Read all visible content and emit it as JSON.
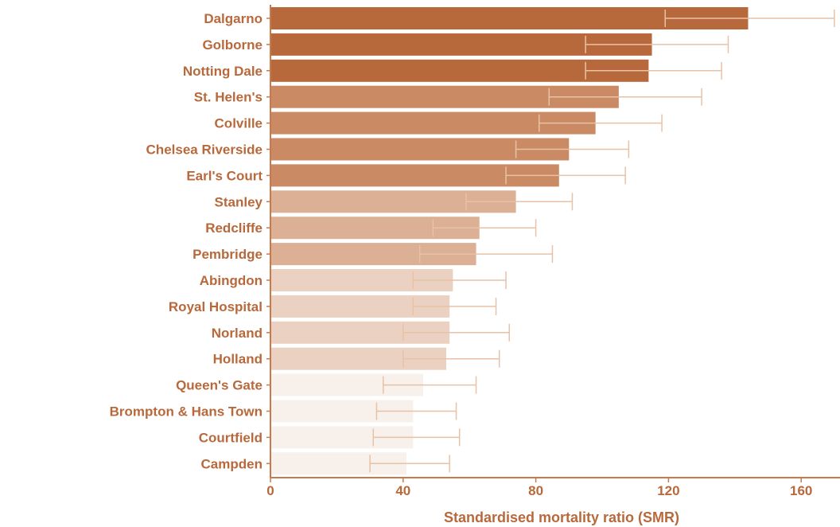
{
  "chart_data": {
    "type": "bar",
    "orientation": "horizontal",
    "xlabel": "Standardised mortality ratio (SMR)",
    "ylabel": "",
    "xlim": [
      0,
      170
    ],
    "xticks": [
      0,
      40,
      80,
      120,
      160
    ],
    "grid": false,
    "label_color": "#b8693c",
    "axis_color": "#c87a4c",
    "error_bar_color": "#e8c2a6",
    "bars": [
      {
        "label": "Dalgarno",
        "value": 144,
        "ci_low": 119,
        "ci_high": 170,
        "color": "#b8693c"
      },
      {
        "label": "Golborne",
        "value": 115,
        "ci_low": 95,
        "ci_high": 138,
        "color": "#b8693c"
      },
      {
        "label": "Notting Dale",
        "value": 114,
        "ci_low": 95,
        "ci_high": 136,
        "color": "#b8693c"
      },
      {
        "label": "St. Helen's",
        "value": 105,
        "ci_low": 84,
        "ci_high": 130,
        "color": "#c98a64"
      },
      {
        "label": "Colville",
        "value": 98,
        "ci_low": 81,
        "ci_high": 118,
        "color": "#c98a64"
      },
      {
        "label": "Chelsea Riverside",
        "value": 90,
        "ci_low": 74,
        "ci_high": 108,
        "color": "#c98a64"
      },
      {
        "label": "Earl's Court",
        "value": 87,
        "ci_low": 71,
        "ci_high": 107,
        "color": "#c98a64"
      },
      {
        "label": "Stanley",
        "value": 74,
        "ci_low": 59,
        "ci_high": 91,
        "color": "#dbb094"
      },
      {
        "label": "Redcliffe",
        "value": 63,
        "ci_low": 49,
        "ci_high": 80,
        "color": "#dbb094"
      },
      {
        "label": "Pembridge",
        "value": 62,
        "ci_low": 45,
        "ci_high": 85,
        "color": "#dbb094"
      },
      {
        "label": "Abingdon",
        "value": 55,
        "ci_low": 43,
        "ci_high": 71,
        "color": "#ebd1c1"
      },
      {
        "label": "Royal Hospital",
        "value": 54,
        "ci_low": 43,
        "ci_high": 68,
        "color": "#ebd1c1"
      },
      {
        "label": "Norland",
        "value": 54,
        "ci_low": 40,
        "ci_high": 72,
        "color": "#ebd1c1"
      },
      {
        "label": "Holland",
        "value": 53,
        "ci_low": 40,
        "ci_high": 69,
        "color": "#ebd1c1"
      },
      {
        "label": "Queen's Gate",
        "value": 46,
        "ci_low": 34,
        "ci_high": 62,
        "color": "#f7f0eb"
      },
      {
        "label": "Brompton & Hans Town",
        "value": 43,
        "ci_low": 32,
        "ci_high": 56,
        "color": "#f7f0eb"
      },
      {
        "label": "Courtfield",
        "value": 43,
        "ci_low": 31,
        "ci_high": 57,
        "color": "#f7f0eb"
      },
      {
        "label": "Campden",
        "value": 41,
        "ci_low": 30,
        "ci_high": 54,
        "color": "#f7f0eb"
      }
    ]
  }
}
